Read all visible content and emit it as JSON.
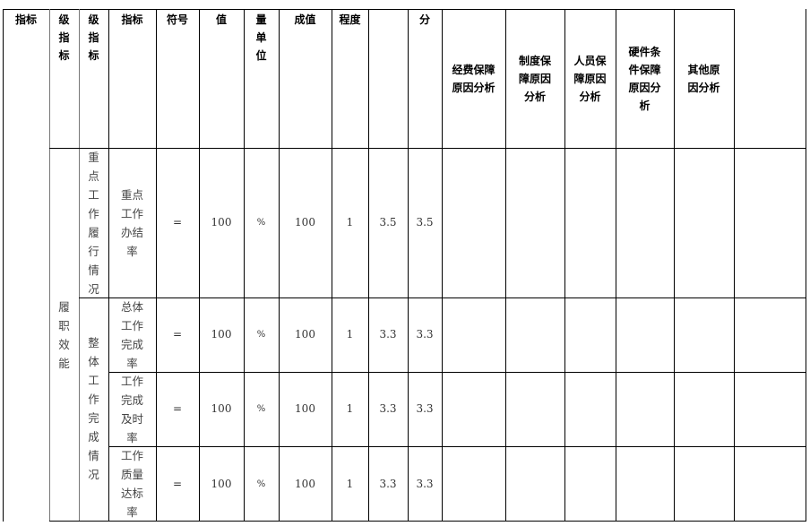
{
  "header": [
    "指标",
    "级指标",
    "级指标",
    "指标",
    "符号",
    "值",
    "量单位",
    "成值",
    "程度",
    "",
    "分",
    "经费保障原因分析",
    "制度保障原因分析",
    "人员保障原因分析",
    "硬件条件保障原因分析",
    "其他原因分析",
    ""
  ],
  "level1": "履职效能",
  "level2": [
    "重点工作履行情况",
    "整体工作完成情况"
  ],
  "rows": [
    {
      "indicator": "重点工作办结率",
      "symbol": "=",
      "target": "100",
      "unit": "%",
      "actual": "100",
      "degree": "1",
      "weight": "3.5",
      "score": "3.5"
    },
    {
      "indicator": "总体工作完成率",
      "symbol": "=",
      "target": "100",
      "unit": "%",
      "actual": "100",
      "degree": "1",
      "weight": "3.3",
      "score": "3.3"
    },
    {
      "indicator": "工作完成及时率",
      "symbol": "=",
      "target": "100",
      "unit": "%",
      "actual": "100",
      "degree": "1",
      "weight": "3.3",
      "score": "3.3"
    },
    {
      "indicator": "工作质量达标率",
      "symbol": "=",
      "target": "100",
      "unit": "%",
      "actual": "100",
      "degree": "1",
      "weight": "3.3",
      "score": "3.3"
    }
  ]
}
